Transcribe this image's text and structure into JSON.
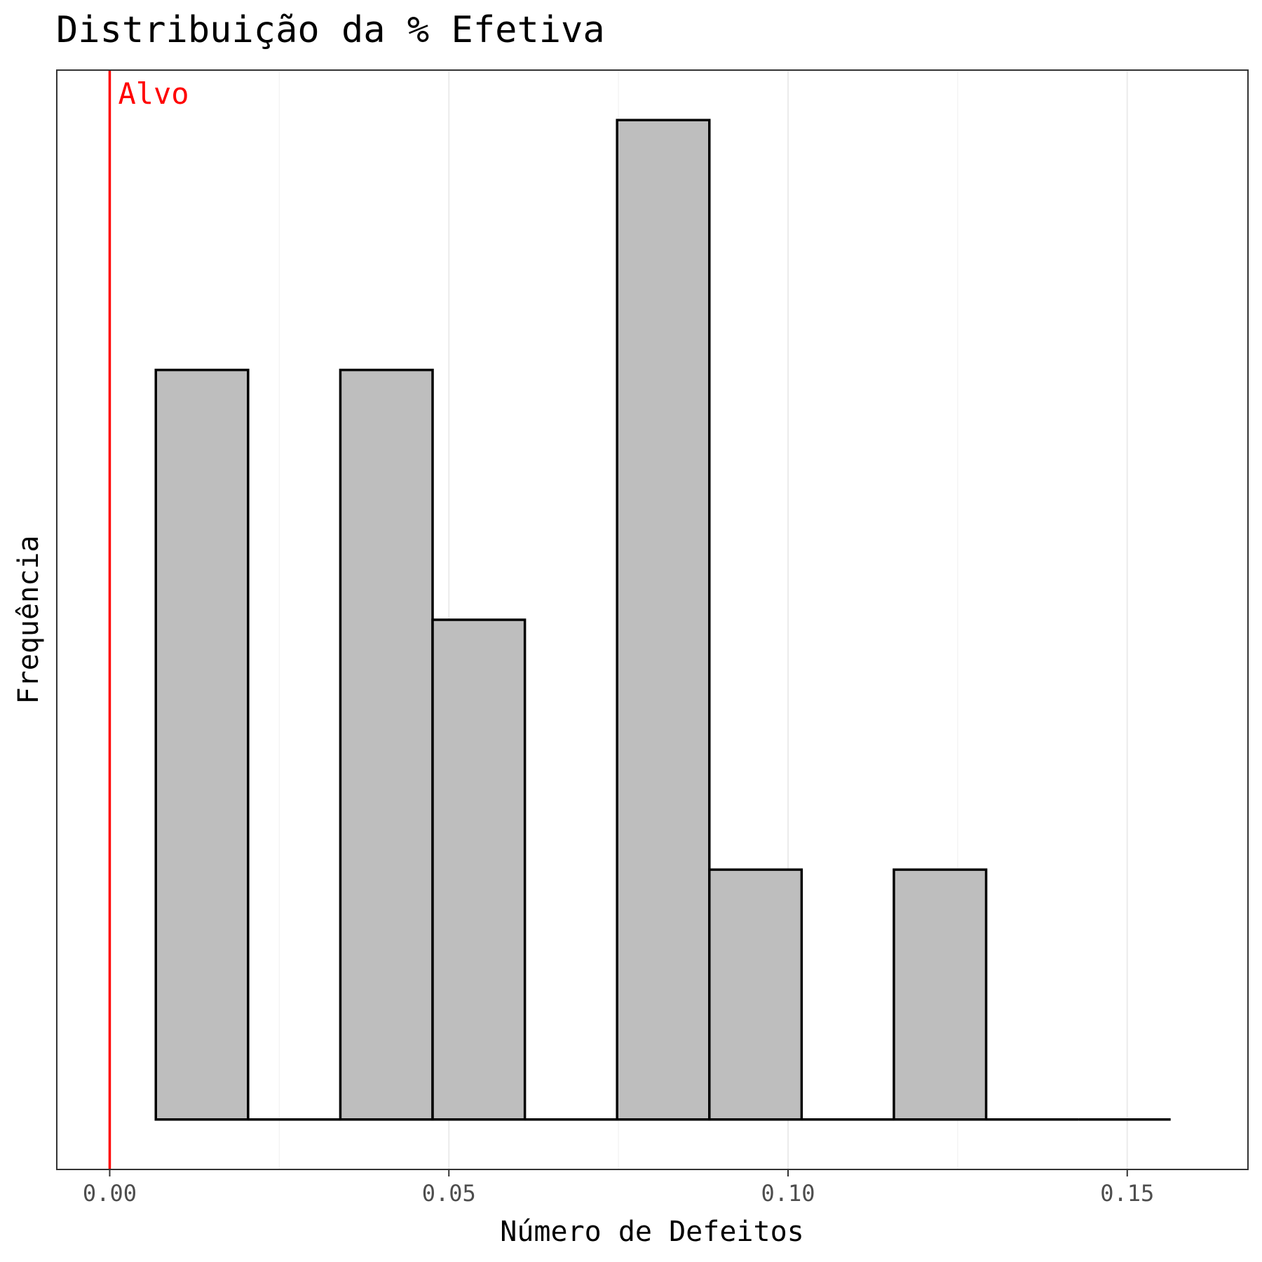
{
  "chart_data": {
    "type": "bar",
    "title": "Distribuição da % Efetiva",
    "xlabel": "Número de Defeitos",
    "ylabel": "Frequência",
    "xlim": [
      -0.0078,
      0.1678
    ],
    "ylim": [
      -0.2,
      4.2
    ],
    "x_ticks": [
      0.0,
      0.05,
      0.1,
      0.15
    ],
    "x_tick_labels": [
      "0.00",
      "0.05",
      "0.10",
      "0.15"
    ],
    "y_ticks_shown": false,
    "grid": "vertical",
    "bin_edges": [
      0.0068,
      0.0204,
      0.034,
      0.0476,
      0.0612,
      0.0748,
      0.0884,
      0.102,
      0.1156,
      0.1292,
      0.1428,
      0.1564
    ],
    "counts": [
      3,
      0,
      3,
      2,
      0,
      4,
      1,
      0,
      1,
      0,
      0
    ],
    "bar_fill": "#bebebe",
    "bar_edge": "#000000",
    "reference_line": {
      "x": 0.0,
      "label": "Alvo",
      "color": "#ff0000"
    }
  }
}
